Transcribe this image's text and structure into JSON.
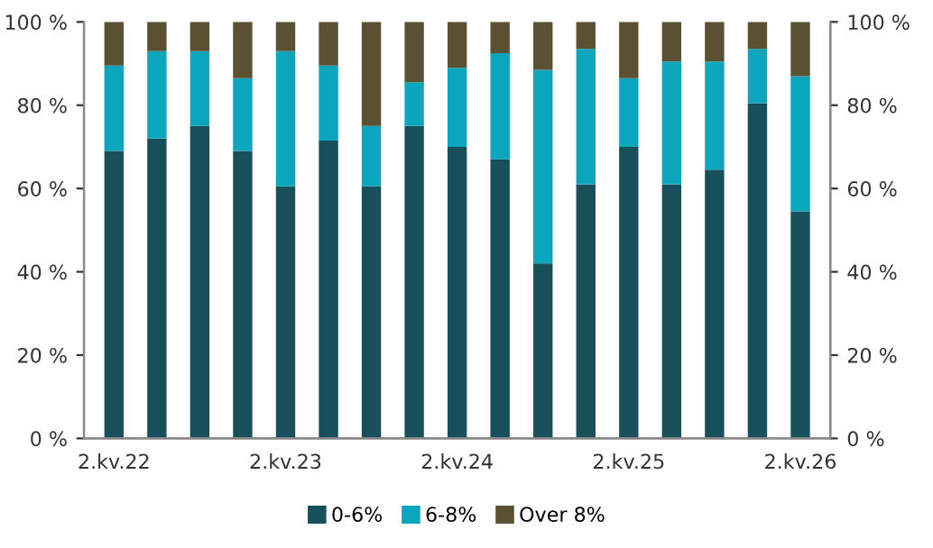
{
  "chart_data": {
    "type": "bar",
    "stacked": true,
    "categories": [
      "2.kv.22",
      null,
      null,
      null,
      "2.kv.23",
      null,
      null,
      null,
      "2.kv.24",
      null,
      null,
      null,
      "2.kv.25",
      null,
      null,
      null,
      "2.kv.26"
    ],
    "series": [
      {
        "name": "0-6%",
        "color": "#17505a",
        "values": [
          69,
          72,
          75,
          69,
          60.5,
          71.5,
          60.5,
          75,
          70,
          67,
          42,
          61,
          70,
          61,
          64.5,
          80.5,
          54.5
        ]
      },
      {
        "name": "6-8%",
        "color": "#0ba5be",
        "values": [
          20.5,
          21,
          18,
          17.5,
          32.5,
          18,
          14.5,
          10.5,
          19,
          25.5,
          46.5,
          32.5,
          16.5,
          29.5,
          26,
          13,
          32.5
        ]
      },
      {
        "name": "Over 8%",
        "color": "#5c5033",
        "values": [
          10.5,
          7,
          7,
          13.5,
          7,
          10.5,
          25,
          14.5,
          11,
          7.5,
          11.5,
          6.5,
          13.5,
          9.5,
          9.5,
          6.5,
          13
        ]
      }
    ],
    "ylim": [
      0,
      100
    ],
    "yticks": [
      {
        "value": 0,
        "label": "0 %"
      },
      {
        "value": 20,
        "label": "20 %"
      },
      {
        "value": 40,
        "label": "40 %"
      },
      {
        "value": 60,
        "label": "60 %"
      },
      {
        "value": 80,
        "label": "80 %"
      },
      {
        "value": 100,
        "label": "100 %"
      }
    ],
    "y2lim": [
      0,
      100
    ],
    "y2ticks": [
      {
        "value": 0,
        "label": "0 %"
      },
      {
        "value": 20,
        "label": "20 %"
      },
      {
        "value": 40,
        "label": "40 %"
      },
      {
        "value": 60,
        "label": "60 %"
      },
      {
        "value": 80,
        "label": "80 %"
      },
      {
        "value": 100,
        "label": "100 %"
      }
    ],
    "grid": false,
    "legend": "bottom"
  }
}
